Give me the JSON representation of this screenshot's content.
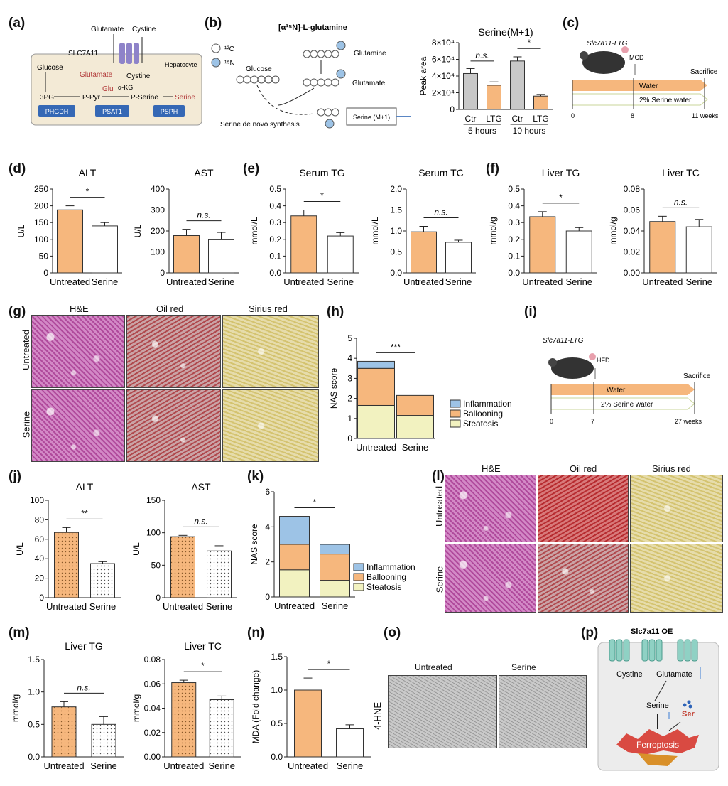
{
  "panels": {
    "a": "(a)",
    "b": "(b)",
    "c": "(c)",
    "d": "(d)",
    "e": "(e)",
    "f": "(f)",
    "g": "(g)",
    "h": "(h)",
    "i": "(i)",
    "j": "(j)",
    "k": "(k)",
    "l": "(l)",
    "m": "(m)",
    "n": "(n)",
    "o": "(o)",
    "p": "(p)"
  },
  "pathway_a": {
    "glutamate_top": "Glutamate",
    "cystine_top": "Cystine",
    "transporter": "SLC7A11",
    "hepatocyte": "Hepatocyte",
    "glucose": "Glucose",
    "glutamate": "Glutamate",
    "cystine": "Cystine",
    "glu": "Glu",
    "akg": "α-KG",
    "tpg": "3PG",
    "ppyr": "P-Pyr",
    "pserine": "P-Serine",
    "serine": "Serine",
    "enz1": "PHGDH",
    "enz2": "PSAT1",
    "enz3": "PSPH"
  },
  "tracing_b": {
    "title": "[α¹⁵N]-L-glutamine",
    "c12": "¹²C",
    "n15": "¹⁵N",
    "glucose": "Glucose",
    "glutamine": "Glutamine",
    "glutamate": "Glutamate",
    "denovo": "Serine de novo synthesis",
    "serine_box": "Serine (M+1)"
  },
  "timeline_c": {
    "mouse": "Slc7a11-LTG",
    "diet": "MCD",
    "sacrifice": "Sacrifice",
    "water": "Water",
    "serine_water": "2% Serine water",
    "t0": "0",
    "t1": "8",
    "t2": "11 weeks"
  },
  "timeline_i": {
    "mouse": "Slc7a11-LTG",
    "diet": "HFD",
    "sacrifice": "Sacrifice",
    "water": "Water",
    "serine_water": "2% Serine water",
    "t0": "0",
    "t1": "7",
    "t2": "27 weeks"
  },
  "histology_g": {
    "cols": [
      "H&E",
      "Oil red",
      "Sirius red"
    ],
    "rows": [
      "Untreated",
      "Serine"
    ]
  },
  "histology_l": {
    "cols": [
      "H&E",
      "Oil red",
      "Sirius red"
    ],
    "rows": [
      "Untreated",
      "Serine"
    ]
  },
  "ihc_o": {
    "cols": [
      "Untreated",
      "Serine"
    ],
    "row": "4-HNE"
  },
  "schematic_p": {
    "oe": "Slc7a11 OE",
    "cystine": "Cystine",
    "glutamate": "Glutamate",
    "serine": "Serine",
    "ser": "Ser",
    "ferro": "Ferroptosis"
  },
  "colors": {
    "orange": "#f6b77d",
    "grey": "#c8c8c8",
    "blue": "#9dc3e6",
    "yellow": "#f2f2c0",
    "white": "#ffffff"
  },
  "chart_data": [
    {
      "id": "b",
      "type": "bar",
      "title": "Serine(M+1)",
      "ylabel": "Peak area",
      "ylim": [
        0,
        80000
      ],
      "yticks": [
        "0",
        "2×10⁴",
        "4×10⁴",
        "6×10⁴",
        "8×10⁴"
      ],
      "categories": [
        "Ctr",
        "LTG",
        "Ctr",
        "LTG"
      ],
      "groups": [
        "5 hours",
        "10 hours"
      ],
      "values": [
        43000,
        29000,
        58000,
        16000
      ],
      "errors": [
        6000,
        4000,
        5000,
        2000
      ],
      "sig": [
        {
          "label": "n.s."
        },
        {
          "label": "*"
        }
      ]
    },
    {
      "id": "d1",
      "type": "bar",
      "title": "ALT",
      "ylabel": "U/L",
      "ylim": [
        0,
        250
      ],
      "yticks": [
        "0",
        "50",
        "100",
        "150",
        "200",
        "250"
      ],
      "categories": [
        "Untreated",
        "Serine"
      ],
      "values": [
        188,
        140
      ],
      "errors": [
        12,
        10
      ],
      "sig": "*"
    },
    {
      "id": "d2",
      "type": "bar",
      "title": "AST",
      "ylabel": "U/L",
      "ylim": [
        0,
        400
      ],
      "yticks": [
        "0",
        "100",
        "200",
        "300",
        "400"
      ],
      "categories": [
        "Untreated",
        "Serine"
      ],
      "values": [
        178,
        158
      ],
      "errors": [
        30,
        35
      ],
      "sig": "n.s."
    },
    {
      "id": "e1",
      "type": "bar",
      "title": "Serum TG",
      "ylabel": "mmol/L",
      "ylim": [
        0,
        0.5
      ],
      "yticks": [
        "0.0",
        "0.1",
        "0.2",
        "0.3",
        "0.4",
        "0.5"
      ],
      "categories": [
        "Untreated",
        "Serine"
      ],
      "values": [
        0.34,
        0.22
      ],
      "errors": [
        0.035,
        0.02
      ],
      "sig": "*"
    },
    {
      "id": "e2",
      "type": "bar",
      "title": "Serum TC",
      "ylabel": "mmol/L",
      "ylim": [
        0,
        2.0
      ],
      "yticks": [
        "0.0",
        "0.5",
        "1.0",
        "1.5",
        "2.0"
      ],
      "categories": [
        "Untreated",
        "Serine"
      ],
      "values": [
        0.98,
        0.73
      ],
      "errors": [
        0.13,
        0.05
      ],
      "sig": "n.s."
    },
    {
      "id": "f1",
      "type": "bar",
      "title": "Liver TG",
      "ylabel": "mmol/g",
      "ylim": [
        0,
        0.5
      ],
      "yticks": [
        "0.0",
        "0.1",
        "0.2",
        "0.3",
        "0.4",
        "0.5"
      ],
      "categories": [
        "Untreated",
        "Serine"
      ],
      "values": [
        0.335,
        0.25
      ],
      "errors": [
        0.03,
        0.02
      ],
      "sig": "*"
    },
    {
      "id": "f2",
      "type": "bar",
      "title": "Liver TC",
      "ylabel": "mmol/g",
      "ylim": [
        0,
        0.08
      ],
      "yticks": [
        "0.00",
        "0.02",
        "0.04",
        "0.06",
        "0.08"
      ],
      "categories": [
        "Untreated",
        "Serine"
      ],
      "values": [
        0.049,
        0.044
      ],
      "errors": [
        0.005,
        0.007
      ],
      "sig": "n.s."
    },
    {
      "id": "h",
      "type": "bar",
      "stacked": true,
      "ylabel": "NAS score",
      "ylim": [
        0,
        5
      ],
      "yticks": [
        "0",
        "1",
        "2",
        "3",
        "4",
        "5"
      ],
      "categories": [
        "Untreated",
        "Serine"
      ],
      "series": [
        {
          "name": "Steatosis",
          "values": [
            1.65,
            1.15
          ]
        },
        {
          "name": "Ballooning",
          "values": [
            1.85,
            1.0
          ]
        },
        {
          "name": "Inflammation",
          "values": [
            0.35,
            0
          ]
        }
      ],
      "sig": "***"
    },
    {
      "id": "j1",
      "type": "bar",
      "title": "ALT",
      "ylabel": "U/L",
      "ylim": [
        0,
        100
      ],
      "yticks": [
        "0",
        "20",
        "40",
        "60",
        "80",
        "100"
      ],
      "categories": [
        "Untreated",
        "Serine"
      ],
      "values": [
        67,
        35
      ],
      "errors": [
        5,
        2
      ],
      "sig": "**"
    },
    {
      "id": "j2",
      "type": "bar",
      "title": "AST",
      "ylabel": "U/L",
      "ylim": [
        0,
        150
      ],
      "yticks": [
        "0",
        "50",
        "100",
        "150"
      ],
      "categories": [
        "Untreated",
        "Serine"
      ],
      "values": [
        94,
        72
      ],
      "errors": [
        2,
        8
      ],
      "sig": "n.s."
    },
    {
      "id": "k",
      "type": "bar",
      "stacked": true,
      "ylabel": "NAS score",
      "ylim": [
        0,
        6
      ],
      "yticks": [
        "0",
        "2",
        "4",
        "6"
      ],
      "categories": [
        "Untreated",
        "Serine"
      ],
      "series": [
        {
          "name": "Steatosis",
          "values": [
            1.55,
            0.95
          ]
        },
        {
          "name": "Ballooning",
          "values": [
            1.45,
            1.5
          ]
        },
        {
          "name": "Inflammation",
          "values": [
            1.6,
            0.55
          ]
        }
      ],
      "sig": "*"
    },
    {
      "id": "m1",
      "type": "bar",
      "title": "Liver TG",
      "ylabel": "mmol/g",
      "ylim": [
        0,
        1.5
      ],
      "yticks": [
        "0.0",
        "0.5",
        "1.0",
        "1.5"
      ],
      "categories": [
        "Untreated",
        "Serine"
      ],
      "values": [
        0.77,
        0.5
      ],
      "errors": [
        0.08,
        0.12
      ],
      "sig": "n.s."
    },
    {
      "id": "m2",
      "type": "bar",
      "title": "Liver TC",
      "ylabel": "mmol/g",
      "ylim": [
        0,
        0.08
      ],
      "yticks": [
        "0.00",
        "0.02",
        "0.04",
        "0.06",
        "0.08"
      ],
      "categories": [
        "Untreated",
        "Serine"
      ],
      "values": [
        0.061,
        0.047
      ],
      "errors": [
        0.002,
        0.003
      ],
      "sig": "*"
    },
    {
      "id": "n",
      "type": "bar",
      "ylabel": "MDA (Fold change)",
      "ylim": [
        0,
        1.5
      ],
      "yticks": [
        "0.0",
        "0.5",
        "1.0",
        "1.5"
      ],
      "categories": [
        "Untreated",
        "Serine"
      ],
      "values": [
        1.0,
        0.42
      ],
      "errors": [
        0.18,
        0.06
      ],
      "sig": "*"
    }
  ]
}
